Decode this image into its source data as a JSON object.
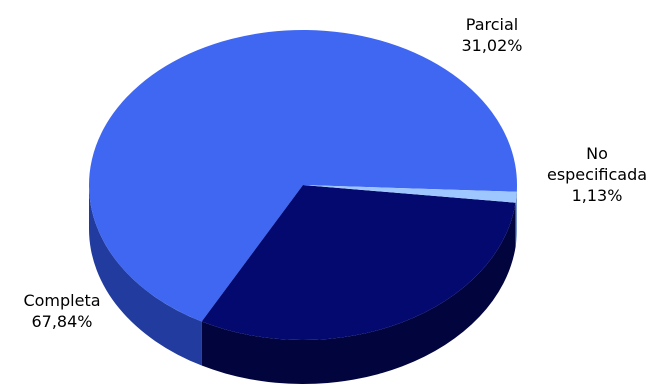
{
  "chart_data": {
    "type": "pie",
    "title": "",
    "three_d": true,
    "legend": "none",
    "slices": [
      {
        "name": "Completa",
        "value": 67.84,
        "label": "67,84%",
        "color": "#3f67f2",
        "side_color": "#213c9e"
      },
      {
        "name": "Parcial",
        "value": 31.02,
        "label": "31,02%",
        "color": "#03096e",
        "side_color": "#02053d"
      },
      {
        "name": "No especificada",
        "name_lines": [
          "No",
          "especificada"
        ],
        "value": 1.13,
        "label": "1,13%",
        "color": "#9fc7ff",
        "side_color": "#6e90c4"
      }
    ]
  }
}
